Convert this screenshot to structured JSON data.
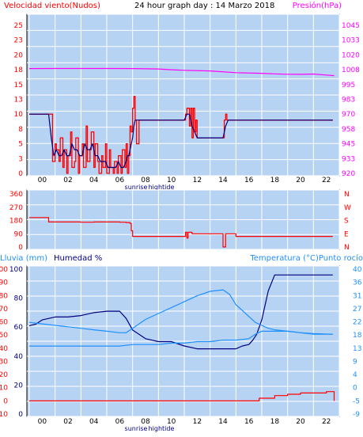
{
  "header": {
    "left_label": "Velocidad viento(Nudos)",
    "title": "24 hour graph day : 14 Marzo 2018",
    "right_label": "Presión(hPa)"
  },
  "colors": {
    "background": "#b7d3f3",
    "grid": "#ffffff",
    "wind_max": "#ff0000",
    "wind_avg": "#000080",
    "pressure": "#ff00ff",
    "direction": "#ff0000",
    "rain": "#ff0000",
    "humidity": "#000080",
    "temperature": "#1e90ff",
    "dewpoint": "#1e90ff",
    "left_axis_text": "#ff0000",
    "right_axis_text": "#ff00ff"
  },
  "chart_data": [
    {
      "type": "line",
      "name": "wind-pressure",
      "x_ticks": [
        "00",
        "02",
        "04",
        "06",
        "08",
        "10",
        "12",
        "14",
        "16",
        "18",
        "20",
        "22"
      ],
      "x_labels_extra": [
        "sunrise",
        "hightide"
      ],
      "ylabel_left": "Velocidad viento(Nudos)",
      "ylabel_right": "Presión(hPa)",
      "ylim_left": [
        0,
        25
      ],
      "yticks_left": [
        "25",
        "23",
        "20",
        "18",
        "15",
        "13",
        "10",
        "8",
        "5",
        "3",
        "0"
      ],
      "ylim_right": [
        920,
        1045
      ],
      "yticks_right": [
        "1045",
        "1033",
        "1020",
        "1008",
        "995",
        "983",
        "970",
        "958",
        "945",
        "933",
        "920"
      ],
      "series": [
        {
          "name": "wind_max",
          "axis": "left",
          "x": [
            0,
            1.5,
            1.8,
            2.0,
            2.1,
            2.3,
            2.4,
            2.6,
            2.7,
            2.9,
            3.0,
            3.2,
            3.3,
            3.5,
            3.6,
            3.8,
            3.9,
            4.1,
            4.2,
            4.4,
            4.5,
            4.7,
            4.8,
            5.0,
            5.1,
            5.3,
            5.4,
            5.6,
            5.7,
            5.9,
            6.0,
            6.2,
            6.3,
            6.5,
            6.6,
            6.8,
            6.9,
            7.1,
            7.2,
            7.4,
            7.5,
            7.6,
            7.7,
            7.8,
            7.9,
            8.0,
            8.1,
            8.2,
            8.3,
            8.5,
            8.7,
            9,
            10,
            11,
            12.0,
            12.1,
            12.2,
            12.4,
            12.5,
            12.6,
            12.7,
            12.8,
            12.9,
            13.0,
            13.5,
            14,
            14.5,
            15.0,
            15.1,
            15.2,
            15.3,
            15.4,
            15.6,
            16,
            18,
            20,
            22,
            23.5
          ],
          "y": [
            10,
            10,
            2,
            5,
            4,
            2,
            6,
            1,
            4,
            0,
            3,
            7,
            1,
            2,
            6,
            0,
            3,
            5,
            1,
            8,
            2,
            4,
            7,
            1,
            5,
            2,
            0,
            3,
            1,
            5,
            0,
            4,
            1,
            0,
            2,
            0,
            3,
            0,
            4,
            1,
            5,
            0,
            3,
            8,
            7,
            11,
            13,
            9,
            5,
            9,
            9,
            9,
            9,
            9,
            9,
            10,
            11,
            8,
            11,
            6,
            11,
            7,
            9,
            6,
            6,
            6,
            6,
            6,
            9,
            10,
            9,
            9,
            9,
            9,
            9,
            9,
            9,
            9
          ]
        },
        {
          "name": "wind_avg",
          "axis": "left",
          "x": [
            0,
            1.5,
            1.7,
            1.9,
            2.1,
            2.3,
            2.5,
            2.7,
            2.9,
            3.1,
            3.3,
            3.5,
            3.7,
            3.9,
            4.1,
            4.3,
            4.5,
            4.7,
            4.9,
            5.1,
            5.3,
            5.5,
            5.7,
            5.9,
            6.1,
            6.3,
            6.5,
            6.7,
            6.9,
            7.1,
            7.3,
            7.5,
            7.6,
            7.7,
            7.8,
            7.9,
            8.0,
            8.1,
            8.2,
            8.3,
            8.5,
            9,
            10,
            11,
            12.0,
            12.2,
            12.4,
            12.6,
            12.8,
            13.0,
            13.5,
            14,
            14.5,
            15.0,
            15.2,
            15.4,
            16,
            18,
            20,
            22,
            23.5
          ],
          "y": [
            10,
            10,
            6,
            3,
            4,
            3,
            3,
            4,
            3,
            3,
            5,
            4,
            4,
            3,
            3,
            5,
            4,
            4,
            5,
            3,
            3,
            2,
            2,
            2,
            1,
            1,
            1,
            1,
            2,
            1,
            1,
            2,
            3,
            3,
            4,
            5,
            6,
            8,
            9,
            9,
            9,
            9,
            9,
            9,
            9,
            10,
            10,
            8,
            7,
            6,
            6,
            6,
            6,
            6,
            8,
            9,
            9,
            9,
            9,
            9,
            9
          ]
        },
        {
          "name": "pressure",
          "axis": "right",
          "x": [
            0,
            2,
            4,
            6,
            8,
            10,
            11,
            12,
            14,
            16,
            18,
            19,
            20,
            21,
            22,
            23,
            23.6
          ],
          "y": [
            1008.5,
            1008.6,
            1008.6,
            1008.6,
            1008.5,
            1008.2,
            1007.5,
            1007,
            1006.5,
            1005,
            1004.5,
            1004,
            1003.7,
            1003.6,
            1003.9,
            1003,
            1002.5
          ]
        }
      ]
    },
    {
      "type": "line",
      "name": "wind-direction",
      "x_ticks": [
        "00",
        "02",
        "04",
        "06",
        "08",
        "10",
        "12",
        "14",
        "16",
        "18",
        "20",
        "22"
      ],
      "ylim": [
        0,
        360
      ],
      "yticks_left": [
        "360",
        "270",
        "180",
        "90",
        "0"
      ],
      "yticks_right": [
        "N",
        "W",
        "S",
        "E",
        "N"
      ],
      "series": [
        {
          "name": "direction",
          "x": [
            0,
            1.4,
            1.5,
            3,
            4,
            5,
            6,
            7,
            7.5,
            7.8,
            7.9,
            8,
            9,
            10,
            11,
            12.0,
            12.1,
            12.2,
            12.3,
            12.5,
            12.6,
            12.7,
            13,
            14,
            14.9,
            15.0,
            15.1,
            15.2,
            16,
            18,
            20,
            22,
            23.5
          ],
          "y": [
            200,
            200,
            170,
            170,
            168,
            170,
            170,
            168,
            166,
            160,
            110,
            72,
            72,
            72,
            72,
            72,
            100,
            60,
            100,
            100,
            90,
            90,
            90,
            90,
            90,
            0,
            0,
            90,
            72,
            72,
            72,
            72,
            72
          ]
        }
      ]
    },
    {
      "type": "line",
      "name": "rain-humidity-temperature",
      "x_ticks": [
        "00",
        "02",
        "04",
        "06",
        "08",
        "10",
        "12",
        "14",
        "16",
        "18",
        "20",
        "22"
      ],
      "x_labels_extra": [
        "sunrise",
        "hightide"
      ],
      "ylabel_left_1": "Lluvia (mm)",
      "ylabel_left_2": "Humedad %",
      "ylabel_right": "Temperatura (°C)Punto rocío",
      "ylim_rain": [
        -10,
        100
      ],
      "yticks_rain": [
        "100",
        "90",
        "80",
        "70",
        "60",
        "50",
        "40",
        "30",
        "20",
        "10",
        "0",
        "-10"
      ],
      "ylim_humidity": [
        0,
        100
      ],
      "yticks_humidity": [
        "100",
        "80",
        "60",
        "40",
        "20",
        "0"
      ],
      "ylim_temp": [
        -9,
        40
      ],
      "yticks_temp": [
        "40",
        "36",
        "31",
        "27",
        "22",
        "18",
        "13",
        "9",
        "4",
        "0",
        "-5",
        "-9"
      ],
      "series": [
        {
          "name": "rain",
          "axis": "rain",
          "x": [
            0,
            17.7,
            17.8,
            18,
            18.5,
            19,
            19.5,
            20,
            21,
            22,
            23,
            23.5,
            23.6
          ],
          "y": [
            0,
            0,
            2,
            2,
            2,
            4,
            4,
            5,
            6,
            6,
            7,
            7,
            0
          ]
        },
        {
          "name": "humidity",
          "axis": "humidity",
          "x": [
            0,
            0.5,
            1,
            2,
            3,
            4,
            5,
            6,
            7,
            7.5,
            8,
            9,
            10,
            11,
            12,
            13,
            14,
            15,
            16,
            16.5,
            17,
            17.3,
            17.6,
            18,
            18.5,
            19,
            20,
            21,
            22,
            23.5
          ],
          "y": [
            61,
            62,
            65,
            67,
            67,
            68,
            70,
            71,
            71,
            66,
            58,
            52,
            50,
            50,
            47,
            45,
            45,
            45,
            45,
            47,
            48,
            51,
            55,
            65,
            85,
            96,
            96,
            96,
            96,
            96
          ]
        },
        {
          "name": "temperature",
          "axis": "temp",
          "x": [
            0,
            1,
            2,
            3,
            4,
            5,
            6,
            7,
            7.5,
            8,
            9,
            10,
            11,
            12,
            13,
            14,
            15,
            15.5,
            16,
            16.5,
            17,
            17.5,
            18,
            18.5,
            19,
            20,
            21,
            22,
            23.5
          ],
          "y": [
            22,
            21.5,
            21,
            20.5,
            20,
            19.5,
            19,
            18.5,
            18.5,
            20,
            23,
            25,
            27,
            29,
            31,
            32.5,
            33,
            31.5,
            28,
            26,
            24,
            22,
            21,
            20,
            19.5,
            19,
            18.5,
            18.2,
            18
          ]
        },
        {
          "name": "dewpoint",
          "axis": "temp",
          "x": [
            0,
            1,
            2,
            3,
            4,
            5,
            6,
            7,
            8,
            9,
            10,
            11,
            12,
            13,
            14,
            15,
            16,
            17,
            17.5,
            18,
            19,
            20,
            21,
            22,
            23.5
          ],
          "y": [
            14,
            14,
            14,
            14,
            14,
            14,
            14,
            14,
            14.5,
            14.5,
            14.5,
            15,
            15,
            15.5,
            15.5,
            16,
            16,
            16.5,
            18,
            19,
            19,
            19,
            18.5,
            18,
            18
          ]
        }
      ]
    }
  ]
}
